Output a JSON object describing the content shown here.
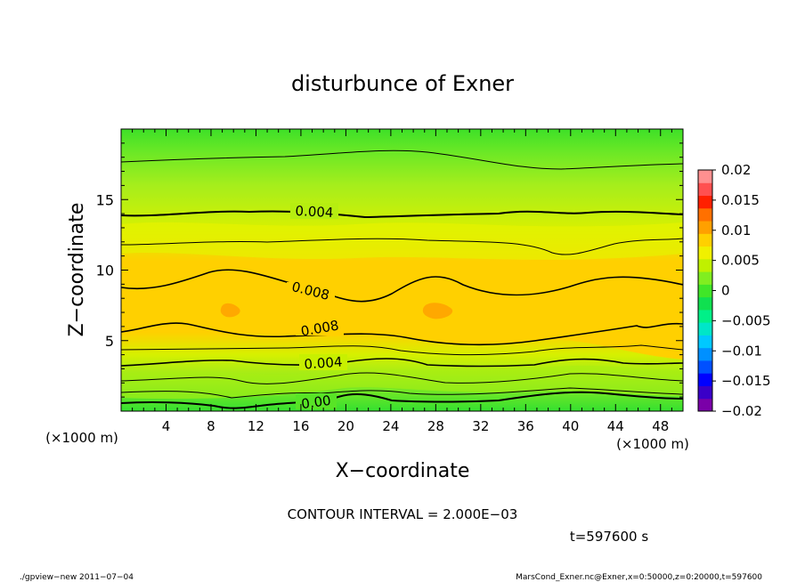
{
  "chart_data": {
    "type": "heatmap",
    "title": "disturbunce of Exner",
    "xlabel": "X−coordinate",
    "ylabel": "Z−coordinate",
    "x_unit_left": "(×1000 m)",
    "x_unit_right": "(×1000 m)",
    "xlim": [
      0,
      50
    ],
    "ylim": [
      0,
      20
    ],
    "x_ticks": [
      4,
      8,
      12,
      16,
      20,
      24,
      28,
      32,
      36,
      40,
      44,
      48
    ],
    "x_tick_labels": [
      "4",
      "8",
      "12",
      "16",
      "20",
      "24",
      "28",
      "32",
      "36",
      "40",
      "44",
      "48"
    ],
    "y_ticks": [
      5,
      10,
      15
    ],
    "y_tick_labels": [
      "5",
      "10",
      "15"
    ],
    "contour_interval_text": "CONTOUR INTERVAL = 2.000E−03",
    "time_text": "t=597600 s",
    "contour_labels": [
      {
        "text": "0.004",
        "x": 17.5,
        "z": 14.2
      },
      {
        "text": "0.008",
        "x": 17.0,
        "z": 8.1
      },
      {
        "text": "0.008",
        "x": 17.5,
        "z": 5.7
      },
      {
        "text": "0.004",
        "x": 17.5,
        "z": 3.4
      },
      {
        "text": "0.00",
        "x": 17.0,
        "z": 0.6
      }
    ],
    "colorbar": {
      "range": [
        -0.02,
        0.02
      ],
      "tick_labels": [
        "0.02",
        "0.015",
        "0.01",
        "0.005",
        "0",
        "−0.005",
        "−0.01",
        "−0.015",
        "−0.02"
      ],
      "colors": [
        "#7a00a8",
        "#3a00c8",
        "#0000ff",
        "#0050ff",
        "#0090ff",
        "#00c8ff",
        "#00e6c8",
        "#00f088",
        "#10e050",
        "#40e628",
        "#80ee20",
        "#c0f000",
        "#f0f000",
        "#ffd000",
        "#ffa000",
        "#ff7000",
        "#ff2000",
        "#ff5050",
        "#ff9090"
      ]
    }
  },
  "footer": {
    "left": "./gpview−new   2011−07−04",
    "right": "MarsCond_Exner.nc@Exner,x=0:50000,z=0:20000,t=597600"
  }
}
